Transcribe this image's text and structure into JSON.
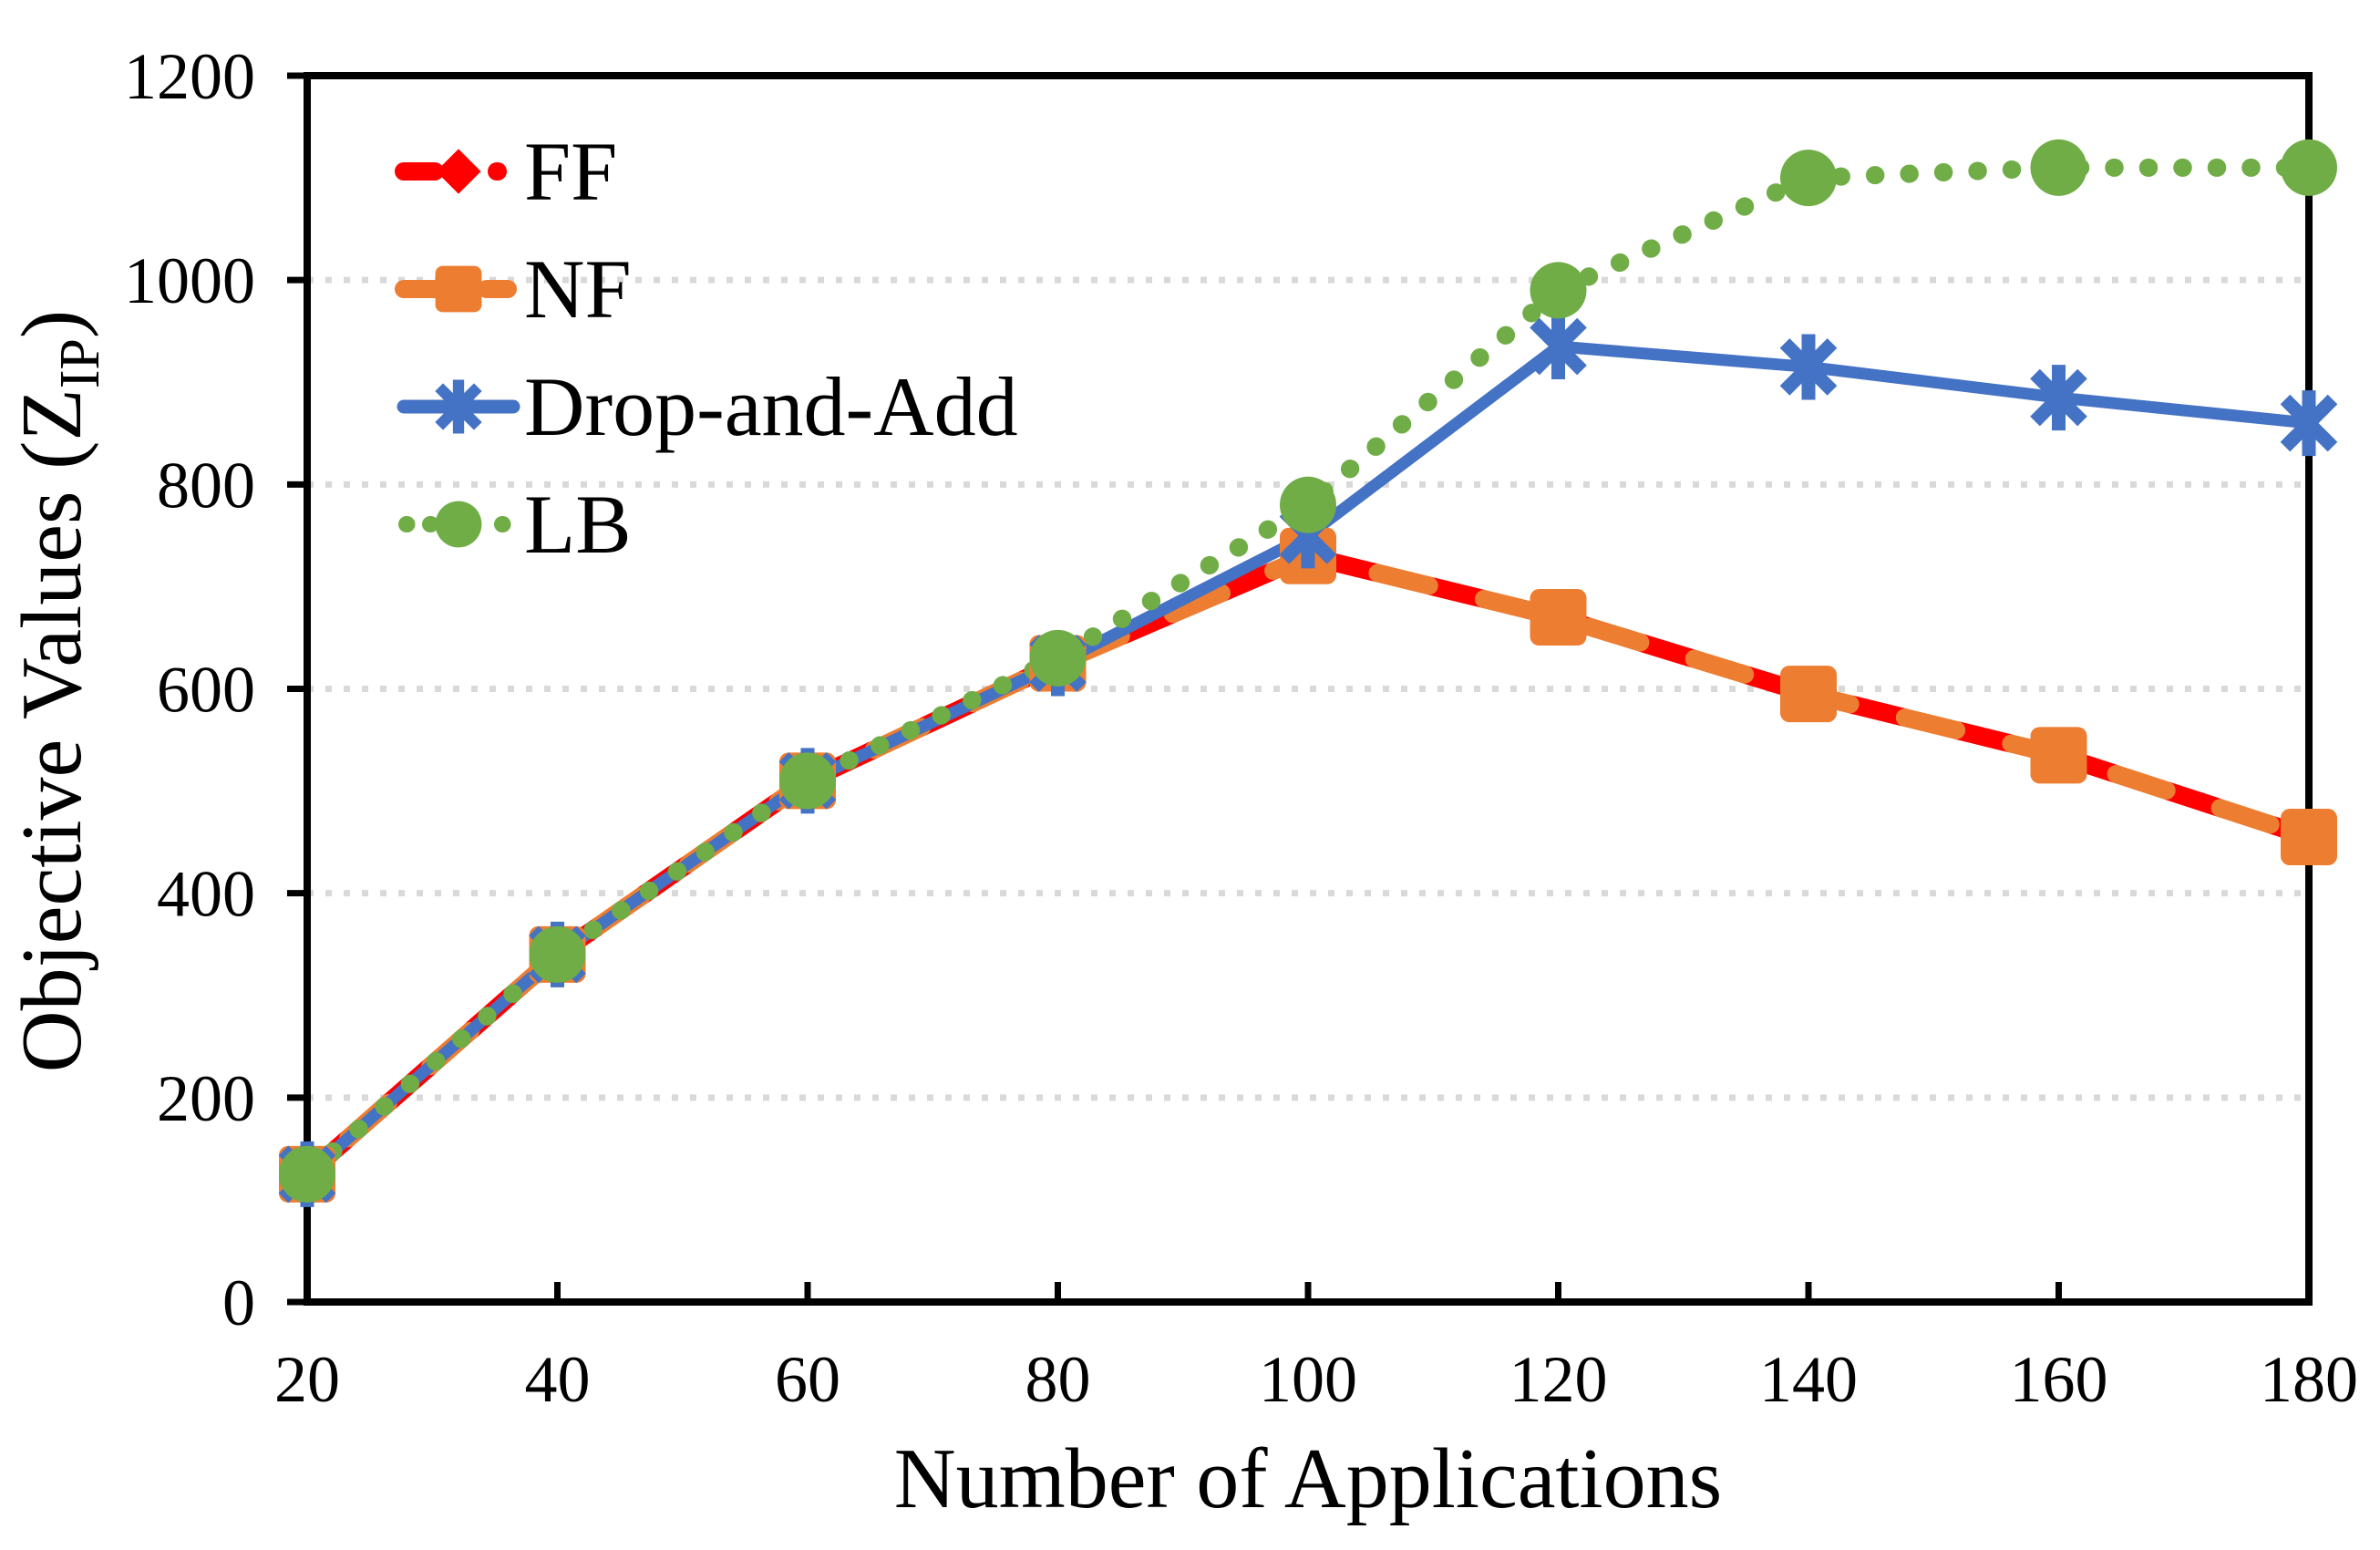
{
  "figure": {
    "background": "#FFFFFF",
    "plot_border_color": "#000000",
    "gridline_color": "#D9D9D9",
    "ylabel_main": "Objective Values (Z",
    "ylabel_sub": "IP",
    "ylabel_close": ")"
  },
  "chart_data": {
    "type": "line",
    "title": "",
    "xlabel": "Number of Applications",
    "ylabel": "Objective Values (Z_IP)",
    "x": [
      20,
      40,
      60,
      80,
      100,
      120,
      140,
      160,
      180
    ],
    "xticks": [
      20,
      40,
      60,
      80,
      100,
      120,
      140,
      160,
      180
    ],
    "yticks": [
      0,
      200,
      400,
      600,
      800,
      1000,
      1200
    ],
    "xlim": [
      20,
      180
    ],
    "ylim": [
      0,
      1200
    ],
    "grid": "horizontal-dotted-200-to-1000",
    "legend_position": "inside-top-left",
    "series": [
      {
        "name": "FF",
        "color": "#FF0000",
        "marker": "diamond",
        "line_style": "dashed",
        "values": [
          125,
          340,
          510,
          625,
          730,
          670,
          595,
          535,
          455
        ]
      },
      {
        "name": "NF",
        "color": "#ED7D31",
        "marker": "square",
        "line_style": "dashed",
        "values": [
          125,
          340,
          510,
          625,
          730,
          670,
          595,
          535,
          455
        ]
      },
      {
        "name": "Drop-and-Add",
        "color": "#4472C4",
        "marker": "asterisk",
        "line_style": "solid",
        "values": [
          125,
          340,
          510,
          625,
          750,
          935,
          915,
          885,
          860
        ]
      },
      {
        "name": "LB",
        "color": "#70AD47",
        "marker": "circle",
        "line_style": "dotted",
        "values": [
          125,
          340,
          510,
          630,
          780,
          990,
          1100,
          1110,
          1110
        ]
      }
    ]
  }
}
